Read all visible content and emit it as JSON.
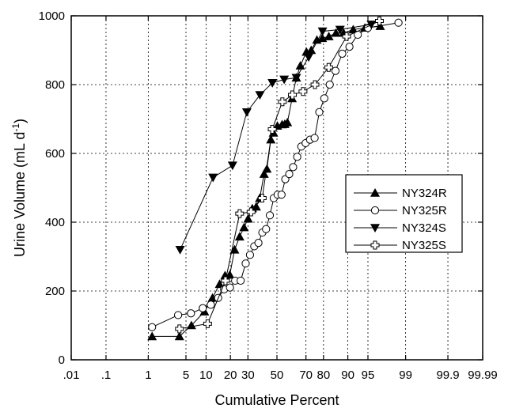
{
  "chart_data": {
    "type": "scatter",
    "title": "",
    "xlabel": "Cumulative Percent",
    "ylabel": "Urine Volume (mL d-1)",
    "ylabel_parts": {
      "main": "Urine Volume (mL d",
      "superscript": "-1",
      "close": ")"
    },
    "x_scale": "normal-probability",
    "xlim": [
      0.01,
      99.99
    ],
    "ylim": [
      0,
      1000
    ],
    "grid": true,
    "legend_position": "right",
    "x_ticks": [
      0.01,
      0.1,
      1,
      5,
      10,
      20,
      30,
      50,
      70,
      80,
      90,
      95,
      99,
      99.9,
      99.99
    ],
    "x_tick_labels": [
      ".01",
      ".1",
      "1",
      "5",
      "10",
      "20",
      "30",
      "50",
      "70",
      "80",
      "90",
      "95",
      "99",
      "99.9",
      "99.99"
    ],
    "y_ticks": [
      0,
      200,
      400,
      600,
      800,
      1000
    ],
    "y_tick_labels": [
      "0",
      "200",
      "400",
      "600",
      "800",
      "1000"
    ],
    "series": [
      {
        "name": "NY324R",
        "marker": "triangle-up",
        "x": [
          1.2,
          3.9,
          6.1,
          9.5,
          12.2,
          15.0,
          17.4,
          19.7,
          22.2,
          25.0,
          27.6,
          30.1,
          32.8,
          35.4,
          37.8,
          40.8,
          42.8,
          45.6,
          47.5,
          50.3,
          53.7,
          55.6,
          57.5,
          60.8,
          63.7,
          66.4,
          70.3,
          73.2,
          76.5,
          79.4,
          82.6,
          85.7,
          88.6,
          91.6,
          94.4,
          96.9
        ],
        "y": [
          68,
          68,
          100,
          140,
          180,
          220,
          245,
          247,
          320,
          358,
          385,
          410,
          440,
          445,
          470,
          540,
          555,
          640,
          660,
          680,
          684,
          685,
          690,
          760,
          820,
          855,
          895,
          900,
          930,
          935,
          940,
          950,
          950,
          960,
          965,
          970
        ]
      },
      {
        "name": "NY325R",
        "marker": "circle",
        "x": [
          1.2,
          3.7,
          6.0,
          9.0,
          11.6,
          14.4,
          17.0,
          19.8,
          22.5,
          25.6,
          28.6,
          31.3,
          34.1,
          36.9,
          39.6,
          42.2,
          44.9,
          47.7,
          50.5,
          53.3,
          56.0,
          58.8,
          61.5,
          64.3,
          67.0,
          69.8,
          72.5,
          75.2,
          77.8,
          80.4,
          83.0,
          85.5,
          88.1,
          90.5,
          92.8,
          95.0,
          98.6
        ],
        "y": [
          95,
          130,
          135,
          150,
          160,
          180,
          205,
          210,
          230,
          230,
          280,
          305,
          330,
          340,
          370,
          380,
          420,
          470,
          480,
          480,
          525,
          540,
          560,
          590,
          620,
          630,
          640,
          645,
          720,
          760,
          800,
          840,
          890,
          910,
          945,
          965,
          980
        ]
      },
      {
        "name": "NY324S",
        "marker": "triangle-down",
        "x": [
          4.0,
          12.4,
          21.1,
          29.3,
          37.9,
          46.7,
          55.2,
          63.7,
          71.7,
          79.5,
          87.3,
          95.6
        ],
        "y": [
          320,
          530,
          565,
          720,
          770,
          805,
          815,
          820,
          880,
          955,
          960,
          975
        ]
      },
      {
        "name": "NY325S",
        "marker": "cross",
        "x": [
          3.9,
          10.5,
          17.6,
          25.0,
          32.0,
          39.5,
          46.6,
          53.9,
          61.0,
          68.1,
          75.4,
          82.5,
          89.6,
          96.8
        ],
        "y": [
          90,
          105,
          230,
          425,
          430,
          470,
          670,
          750,
          770,
          780,
          800,
          850,
          940,
          985
        ]
      }
    ]
  }
}
